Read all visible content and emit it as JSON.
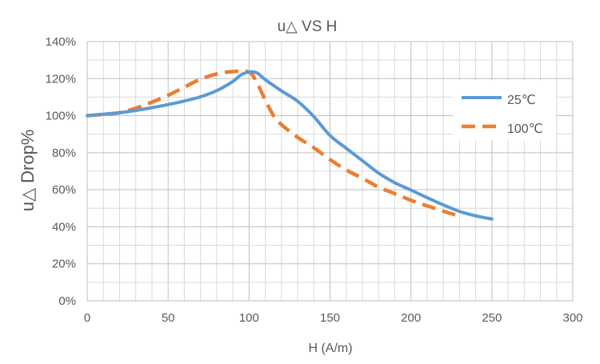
{
  "chart_data": {
    "type": "line",
    "title": "u△ VS H",
    "xlabel": "H (A/m)",
    "ylabel": "u△ Drop%",
    "xlim": [
      0,
      300
    ],
    "ylim": [
      0,
      140
    ],
    "x_ticks": [
      0,
      50,
      100,
      150,
      200,
      250,
      300
    ],
    "x_tick_labels": [
      "0",
      "50",
      "100",
      "150",
      "200",
      "250",
      "300"
    ],
    "y_ticks": [
      0,
      20,
      40,
      60,
      80,
      100,
      120,
      140
    ],
    "y_tick_labels": [
      "0%",
      "20%",
      "40%",
      "60%",
      "80%",
      "100%",
      "120%",
      "140%"
    ],
    "grid": "major and minor",
    "legend_position": "right",
    "series": [
      {
        "name": "25℃",
        "color": "#5b9bd5",
        "style": "solid",
        "x": [
          0,
          10,
          20,
          30,
          40,
          50,
          60,
          70,
          80,
          90,
          95,
          100,
          105,
          110,
          120,
          130,
          140,
          150,
          160,
          170,
          180,
          190,
          200,
          210,
          220,
          230,
          240,
          250
        ],
        "y": [
          100,
          100.8,
          101.6,
          102.8,
          104.3,
          106,
          107.9,
          110.2,
          113.5,
          118.5,
          122,
          123.6,
          123,
          119.4,
          113.4,
          107.8,
          99.5,
          89.3,
          82.4,
          75.7,
          69,
          63.8,
          59.8,
          55.7,
          51.8,
          48.3,
          45.9,
          44.2
        ]
      },
      {
        "name": "100℃",
        "color": "#ed7d31",
        "style": "dashed",
        "x": [
          0,
          10,
          20,
          30,
          40,
          50,
          60,
          70,
          80,
          90,
          100,
          105,
          110,
          115,
          120,
          130,
          140,
          150,
          160,
          170,
          180,
          190,
          200,
          210,
          220,
          230
        ],
        "y": [
          100,
          100.7,
          101.6,
          104,
          107.3,
          111,
          115.4,
          119.7,
          122.5,
          123.8,
          123.5,
          117.5,
          108.4,
          100.2,
          95.2,
          88.3,
          82.7,
          76.3,
          70.7,
          66.2,
          61.4,
          57.9,
          54.3,
          51.3,
          48.4,
          45.8
        ]
      }
    ]
  }
}
